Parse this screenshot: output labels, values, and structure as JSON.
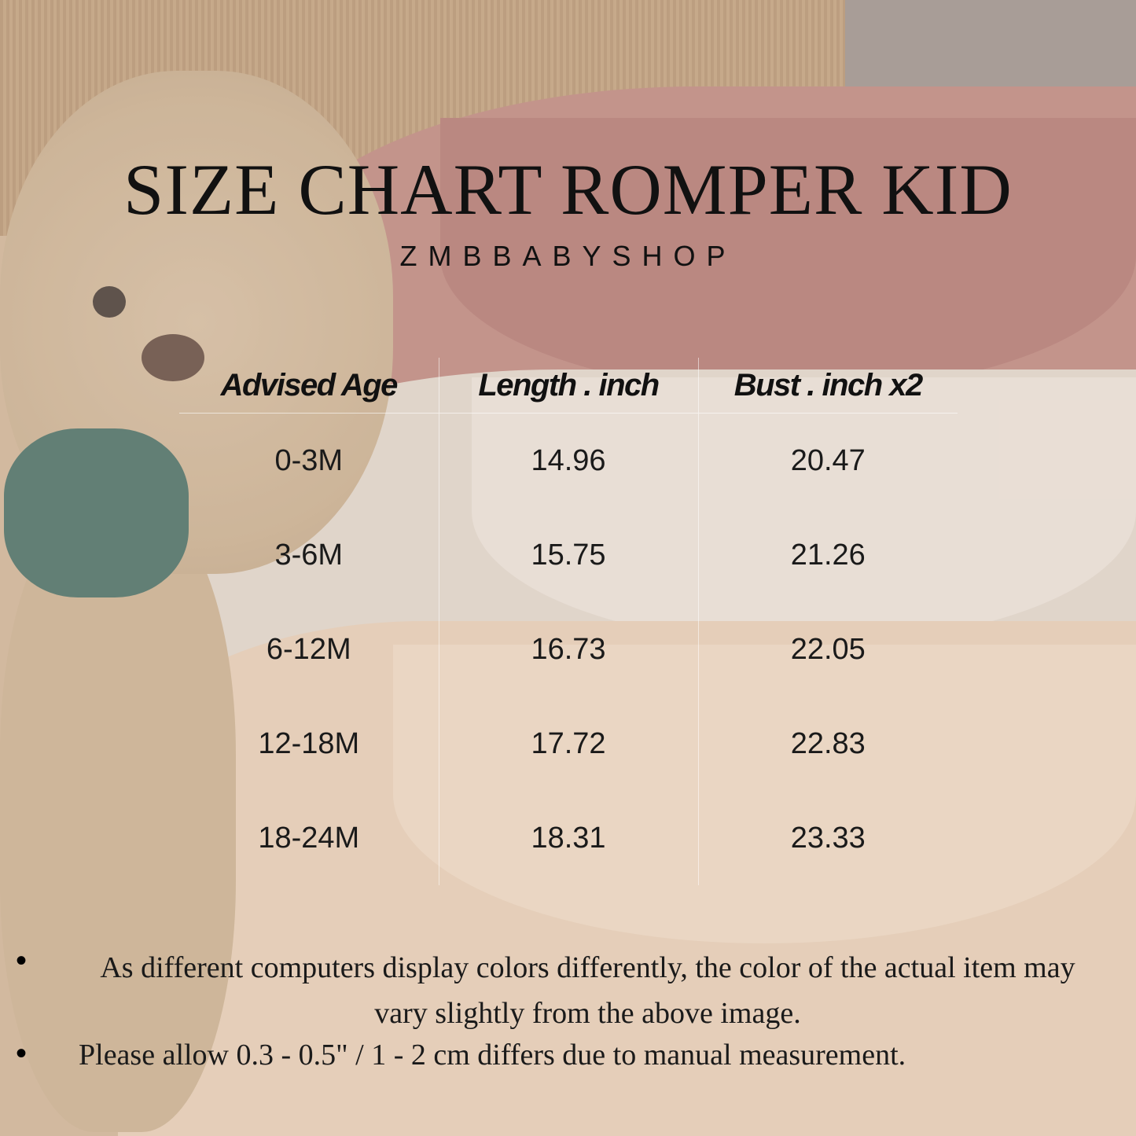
{
  "title": "SIZE CHART ROMPER KID",
  "brand": "ZMBBABYSHOP",
  "table": {
    "headers": [
      "Advised Age",
      "Length . inch",
      "Bust . inch x2"
    ],
    "rows": [
      [
        "0-3M",
        "14.96",
        "20.47"
      ],
      [
        "3-6M",
        "15.75",
        "21.26"
      ],
      [
        "6-12M",
        "16.73",
        "22.05"
      ],
      [
        "12-18M",
        "17.72",
        "22.83"
      ],
      [
        "18-24M",
        "18.31",
        "23.33"
      ]
    ]
  },
  "notes": [
    "As different computers display colors differently, the color of the actual item may vary slightly from the above image.",
    "Please allow 0.3 - 0.5\" / 1 - 2 cm differs due to manual measurement."
  ],
  "colors": {
    "pink_sweater": "#b57a74",
    "white_sweater": "#ddd4cb",
    "cream_sweater": "#e3cbb3",
    "scarf": "#2f5d55"
  }
}
